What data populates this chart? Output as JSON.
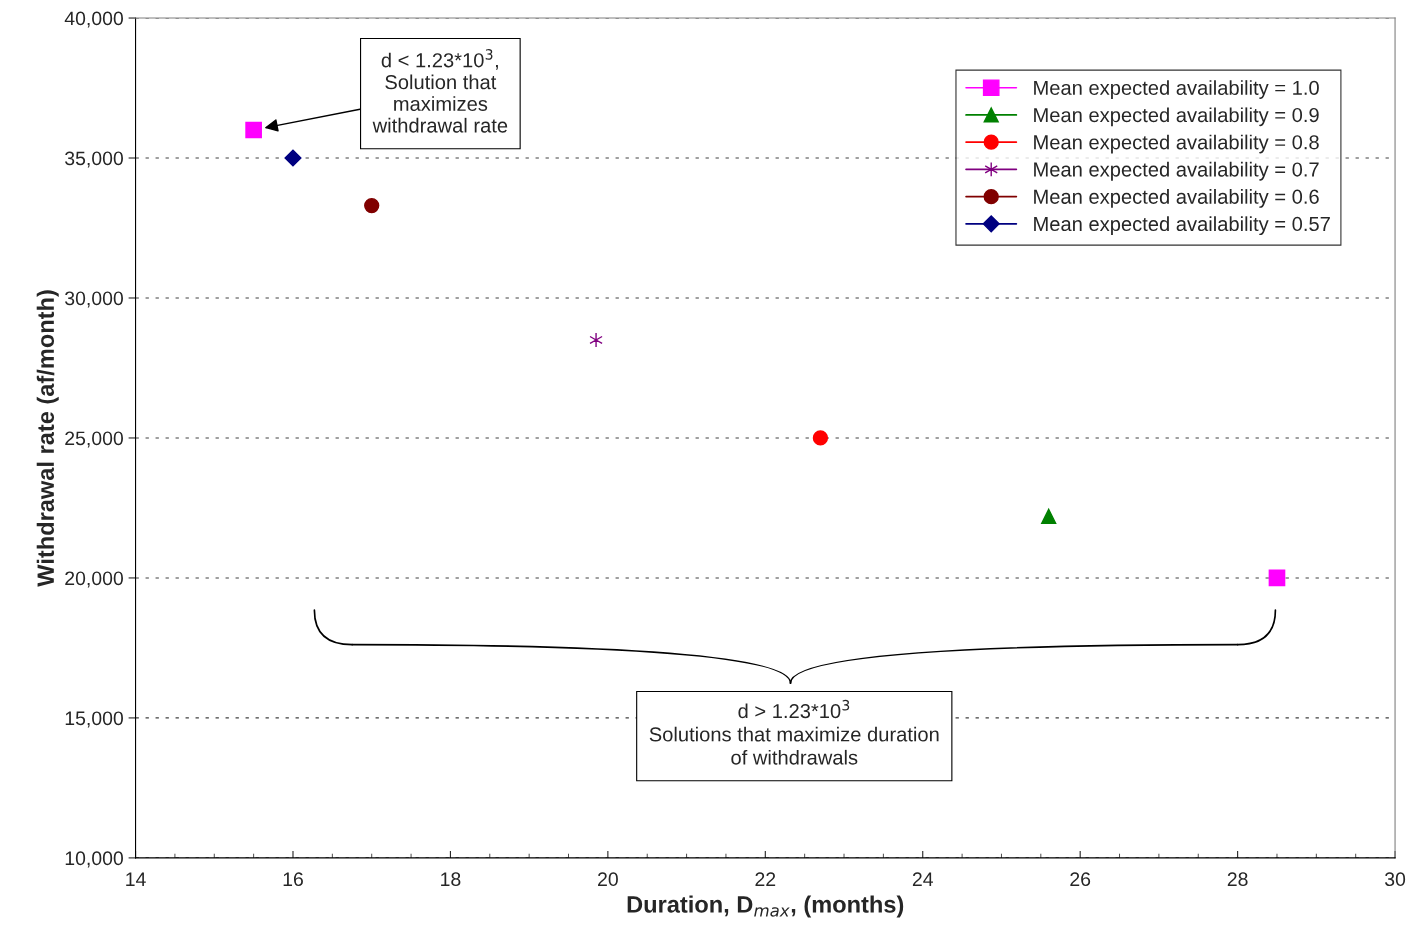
{
  "chart_data": {
    "type": "scatter",
    "xlabel": "Duration, D$_{max}$, (months)",
    "ylabel": "Withdrawal rate (af/month)",
    "xlim": [
      14,
      30
    ],
    "xticks": [
      14,
      16,
      18,
      20,
      22,
      24,
      26,
      28,
      30
    ],
    "ylim": [
      10000,
      40000
    ],
    "yticks": [
      {
        "value": 10000,
        "label": "10,000"
      },
      {
        "value": 15000,
        "label": "15,000"
      },
      {
        "value": 20000,
        "label": "20,000"
      },
      {
        "value": 25000,
        "label": "25,000"
      },
      {
        "value": 30000,
        "label": "30,000"
      },
      {
        "value": 35000,
        "label": "35,000"
      },
      {
        "value": 40000,
        "label": "40,000"
      }
    ],
    "grid": "y",
    "legend": "top right",
    "series": [
      {
        "name": "Mean expected availability = 1.0",
        "color": "#ff00ff",
        "marker": "square",
        "x": [
          15.5,
          28.5
        ],
        "values": [
          36000,
          20000
        ]
      },
      {
        "name": "Mean expected availability = 0.9",
        "color": "#008000",
        "marker": "triangle",
        "x": [
          25.6
        ],
        "values": [
          22200
        ]
      },
      {
        "name": "Mean expected availability = 0.8",
        "color": "#ff0000",
        "marker": "circle",
        "x": [
          22.7
        ],
        "values": [
          25000
        ]
      },
      {
        "name": "Mean expected availability = 0.7",
        "color": "#800080",
        "marker": "cross",
        "x": [
          19.85
        ],
        "values": [
          28500
        ]
      },
      {
        "name": "Mean expected availability = 0.6",
        "color": "#800000",
        "marker": "circle",
        "x": [
          17.0
        ],
        "values": [
          33300
        ]
      },
      {
        "name": "Mean expected availability = 0.57",
        "color": "#000080",
        "marker": "diamond",
        "x": [
          16.0
        ],
        "values": [
          35000
        ]
      }
    ],
    "annotations": [
      "d < 1.23*10$^{3}$,\nSolution that\nmaximizes\nwithdrawal rate",
      "d > 1.23*10$^{3}$\nSolutions that maximize duration\nof withdrawals"
    ]
  }
}
